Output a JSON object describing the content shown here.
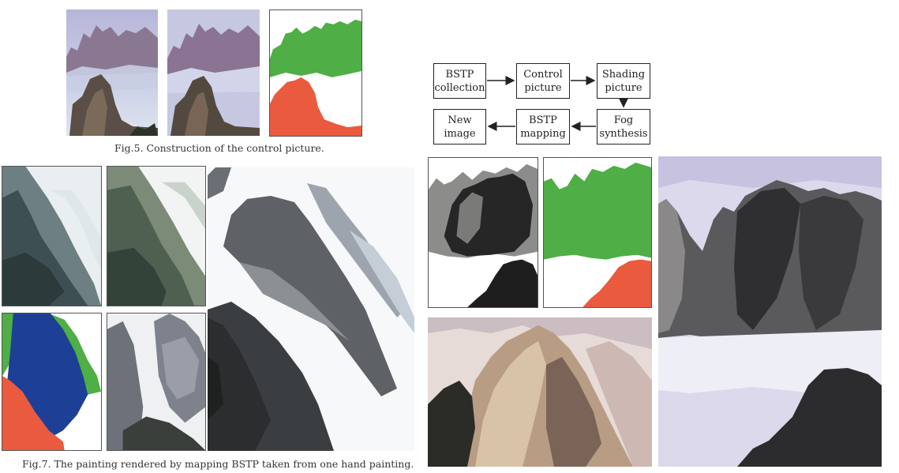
{
  "fig5": {
    "caption": "Fig.5. Construction of the control picture."
  },
  "fig7": {
    "caption": "Fig.7. The painting rendered by mapping BSTP taken from one hand painting."
  },
  "flowchart": {
    "boxes": [
      {
        "id": "bstp-collection",
        "label": "BSTP\ncollection"
      },
      {
        "id": "control-picture",
        "label": "Control\npicture"
      },
      {
        "id": "shading-picture",
        "label": "Shading\npicture"
      },
      {
        "id": "fog-synthesis",
        "label": "Fog\nsynthesis"
      },
      {
        "id": "bstp-mapping",
        "label": "BSTP\nmapping"
      },
      {
        "id": "new-image",
        "label": "New\nimage"
      }
    ]
  },
  "colors": {
    "control_green": "#4fae45",
    "control_red": "#ea5a3e",
    "control_blue": "#1d3f96",
    "sky_purple": "#b9b3d6",
    "mist": "#eceff3",
    "rock_dark": "#3c3f3e"
  }
}
